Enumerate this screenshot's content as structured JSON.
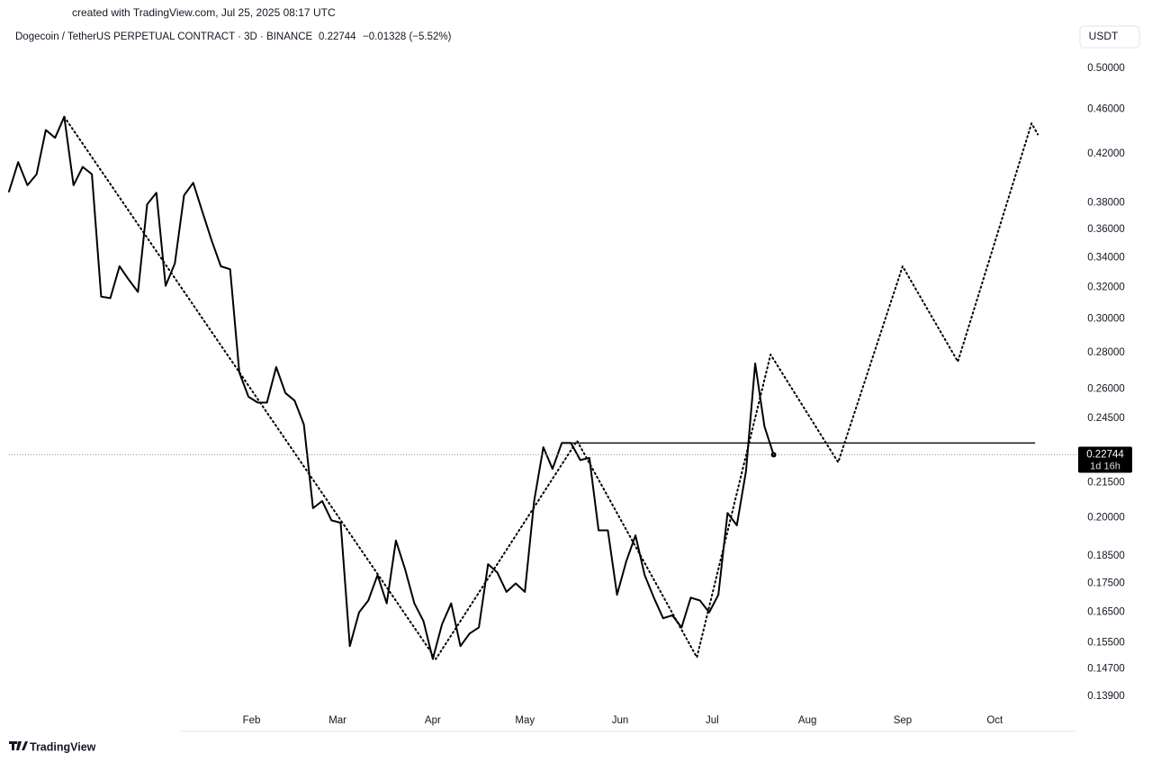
{
  "header": {
    "watermark": "created with TradingView.com, Jul 25, 2025 08:17 UTC",
    "symbol": "Dogecoin / TetherUS PERPETUAL CONTRACT · 3D · BINANCE",
    "price": "0.22744",
    "change": "−0.01328 (−5.52%)",
    "currency": "USDT",
    "logo": "TradingView"
  },
  "chart_data": {
    "type": "line",
    "log_scale": true,
    "xlim": [
      -48,
      299
    ],
    "xticks": [
      {
        "value": 31,
        "label": "Feb"
      },
      {
        "value": 59,
        "label": "Mar"
      },
      {
        "value": 90,
        "label": "Apr"
      },
      {
        "value": 120,
        "label": "May"
      },
      {
        "value": 151,
        "label": "Jun"
      },
      {
        "value": 181,
        "label": "Jul"
      },
      {
        "value": 212,
        "label": "Aug"
      },
      {
        "value": 243,
        "label": "Sep"
      },
      {
        "value": 273,
        "label": "Oct"
      }
    ],
    "ylim": [
      0.135,
      0.544
    ],
    "yticks": [
      {
        "value": 0.5,
        "label": "0.50000"
      },
      {
        "value": 0.46,
        "label": "0.46000"
      },
      {
        "value": 0.42,
        "label": "0.42000"
      },
      {
        "value": 0.38,
        "label": "0.38000"
      },
      {
        "value": 0.36,
        "label": "0.36000"
      },
      {
        "value": 0.34,
        "label": "0.34000"
      },
      {
        "value": 0.32,
        "label": "0.32000"
      },
      {
        "value": 0.3,
        "label": "0.30000"
      },
      {
        "value": 0.28,
        "label": "0.28000"
      },
      {
        "value": 0.26,
        "label": "0.26000"
      },
      {
        "value": 0.245,
        "label": "0.24500"
      },
      {
        "value": 0.215,
        "label": "0.21500"
      },
      {
        "value": 0.2,
        "label": "0.20000"
      },
      {
        "value": 0.185,
        "label": "0.18500"
      },
      {
        "value": 0.175,
        "label": "0.17500"
      },
      {
        "value": 0.165,
        "label": "0.16500"
      },
      {
        "value": 0.155,
        "label": "0.15500"
      },
      {
        "value": 0.147,
        "label": "0.14700"
      },
      {
        "value": 0.139,
        "label": "0.13900"
      }
    ],
    "last_price_label": "0.22744",
    "countdown": "1d 16h",
    "series": [
      {
        "color": "#000000",
        "style": "solid",
        "last_marker": true,
        "x": [
          -48,
          -45,
          -42,
          -39,
          -36,
          -33,
          -30,
          -27,
          -24,
          -21,
          -18,
          -15,
          -12,
          -9,
          -6,
          -3,
          0,
          3,
          6,
          9,
          12,
          15,
          18,
          21,
          24,
          27,
          30,
          33,
          36,
          39,
          42,
          45,
          48,
          51,
          54,
          57,
          60,
          63,
          66,
          69,
          72,
          75,
          78,
          81,
          84,
          87,
          90,
          93,
          96,
          99,
          102,
          105,
          108,
          111,
          114,
          117,
          120,
          123,
          126,
          129,
          132,
          135,
          138,
          141,
          144,
          147,
          150,
          153,
          156,
          159,
          162,
          165,
          168,
          171,
          174,
          177,
          180,
          183,
          186,
          189,
          192,
          195,
          198,
          201
        ],
        "values": [
          0.389,
          0.413,
          0.394,
          0.403,
          0.441,
          0.434,
          0.453,
          0.394,
          0.409,
          0.403,
          0.314,
          0.313,
          0.334,
          0.325,
          0.317,
          0.379,
          0.388,
          0.321,
          0.336,
          0.386,
          0.396,
          0.373,
          0.352,
          0.334,
          0.332,
          0.269,
          0.256,
          0.253,
          0.253,
          0.272,
          0.258,
          0.254,
          0.242,
          0.204,
          0.207,
          0.199,
          0.198,
          0.154,
          0.165,
          0.169,
          0.178,
          0.168,
          0.191,
          0.18,
          0.168,
          0.162,
          0.15,
          0.161,
          0.168,
          0.154,
          0.158,
          0.16,
          0.182,
          0.179,
          0.172,
          0.175,
          0.172,
          0.207,
          0.231,
          0.221,
          0.233,
          0.233,
          0.225,
          0.226,
          0.195,
          0.195,
          0.171,
          0.183,
          0.193,
          0.178,
          0.17,
          0.163,
          0.164,
          0.16,
          0.17,
          0.169,
          0.165,
          0.171,
          0.202,
          0.197,
          0.22,
          0.274,
          0.241,
          0.22744
        ]
      },
      {
        "color": "#000000",
        "style": "dotted",
        "x": [
          -30,
          91,
          137,
          176,
          200,
          222,
          243,
          261,
          285,
          287
        ],
        "values": [
          0.453,
          0.15,
          0.234,
          0.1505,
          0.279,
          0.224,
          0.334,
          0.275,
          0.447,
          0.437
        ]
      },
      {
        "color": "#000000",
        "style": "solid",
        "x": [
          134,
          286
        ],
        "values": [
          0.233,
          0.233
        ]
      }
    ]
  }
}
